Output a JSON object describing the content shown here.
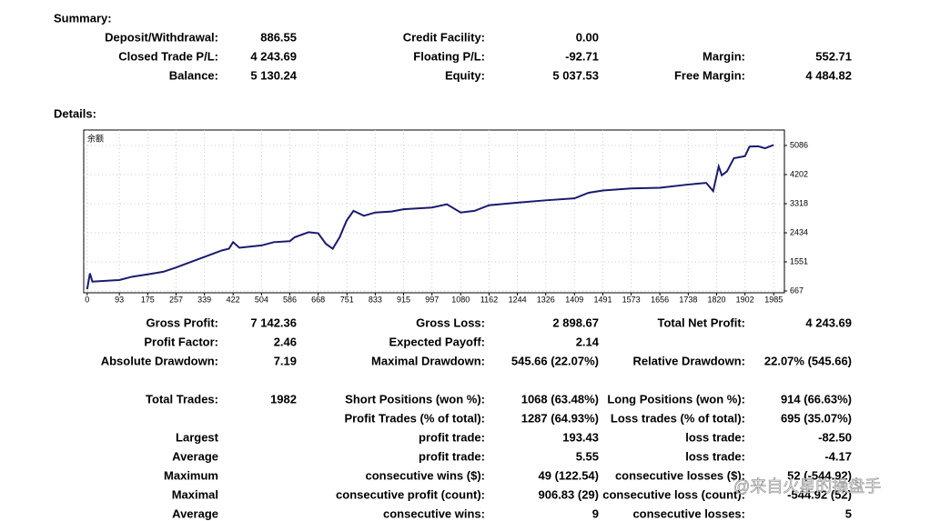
{
  "summary": {
    "title": "Summary:",
    "rows": [
      [
        "Deposit/Withdrawal:",
        "886.55",
        "Credit Facility:",
        "0.00",
        null,
        null
      ],
      [
        "Closed Trade P/L:",
        "4 243.69",
        "Floating P/L:",
        "-92.71",
        "Margin:",
        "552.71"
      ],
      [
        "Balance:",
        "5 130.24",
        "Equity:",
        "5 037.53",
        "Free Margin:",
        "4 484.82"
      ]
    ]
  },
  "details": {
    "title": "Details:",
    "rows": [
      [
        "Gross Profit:",
        "7 142.36",
        "Gross Loss:",
        "2 898.67",
        "Total Net Profit:",
        "4 243.69"
      ],
      [
        "Profit Factor:",
        "2.46",
        "Expected Payoff:",
        "2.14",
        null,
        null
      ],
      [
        "Absolute Drawdown:",
        "7.19",
        "Maximal Drawdown:",
        "545.66 (22.07%)",
        "Relative Drawdown:",
        "22.07% (545.66)"
      ],
      [
        "Total Trades:",
        "1982",
        "Short Positions (won %):",
        "1068 (63.48%)",
        "Long Positions (won %):",
        "914 (66.63%)"
      ],
      [
        null,
        null,
        "Profit Trades (% of total):",
        "1287 (64.93%)",
        "Loss trades (% of total):",
        "695 (35.07%)"
      ],
      [
        "Largest",
        null,
        "profit trade:",
        "193.43",
        "loss trade:",
        "-82.50"
      ],
      [
        "Average",
        null,
        "profit trade:",
        "5.55",
        "loss trade:",
        "-4.17"
      ],
      [
        "Maximum",
        null,
        "consecutive wins ($):",
        "49 (122.54)",
        "consecutive losses ($):",
        "52 (-544.92)"
      ],
      [
        "Maximal",
        null,
        "consecutive profit (count):",
        "906.83 (29)",
        "consecutive loss (count):",
        "-544.92 (52)"
      ],
      [
        "Average",
        null,
        "consecutive wins:",
        "9",
        "consecutive losses:",
        "5"
      ]
    ]
  },
  "chart_data": {
    "type": "line",
    "title": "余额",
    "color": "#1a1a6e",
    "grid": true,
    "x": [
      0,
      8,
      15,
      93,
      130,
      175,
      220,
      257,
      300,
      339,
      390,
      410,
      422,
      440,
      504,
      540,
      586,
      600,
      640,
      668,
      690,
      710,
      730,
      750,
      770,
      800,
      833,
      880,
      915,
      997,
      1040,
      1080,
      1120,
      1162,
      1244,
      1326,
      1409,
      1450,
      1491,
      1573,
      1656,
      1738,
      1790,
      1810,
      1826,
      1835,
      1850,
      1870,
      1902,
      1915,
      1940,
      1960,
      1985
    ],
    "values": [
      720,
      1200,
      950,
      1000,
      1100,
      1170,
      1250,
      1380,
      1550,
      1700,
      1900,
      1950,
      2150,
      1980,
      2050,
      2150,
      2180,
      2300,
      2450,
      2420,
      2100,
      1950,
      2300,
      2800,
      3100,
      2950,
      3050,
      3080,
      3150,
      3200,
      3300,
      3050,
      3100,
      3270,
      3350,
      3420,
      3480,
      3650,
      3720,
      3780,
      3800,
      3900,
      3950,
      3700,
      4450,
      4180,
      4300,
      4700,
      4760,
      5050,
      5060,
      5000,
      5100
    ],
    "xlim": [
      -10,
      2016
    ],
    "ylim": [
      612,
      5555
    ],
    "xticks": [
      0,
      93,
      175,
      257,
      339,
      422,
      504,
      586,
      668,
      751,
      833,
      915,
      997,
      1080,
      1162,
      1244,
      1326,
      1409,
      1491,
      1573,
      1656,
      1738,
      1820,
      1902,
      1985
    ],
    "yticks": [
      667,
      1551,
      2434,
      3318,
      4202,
      5086
    ]
  },
  "watermark": "@来自火星的操盘手"
}
